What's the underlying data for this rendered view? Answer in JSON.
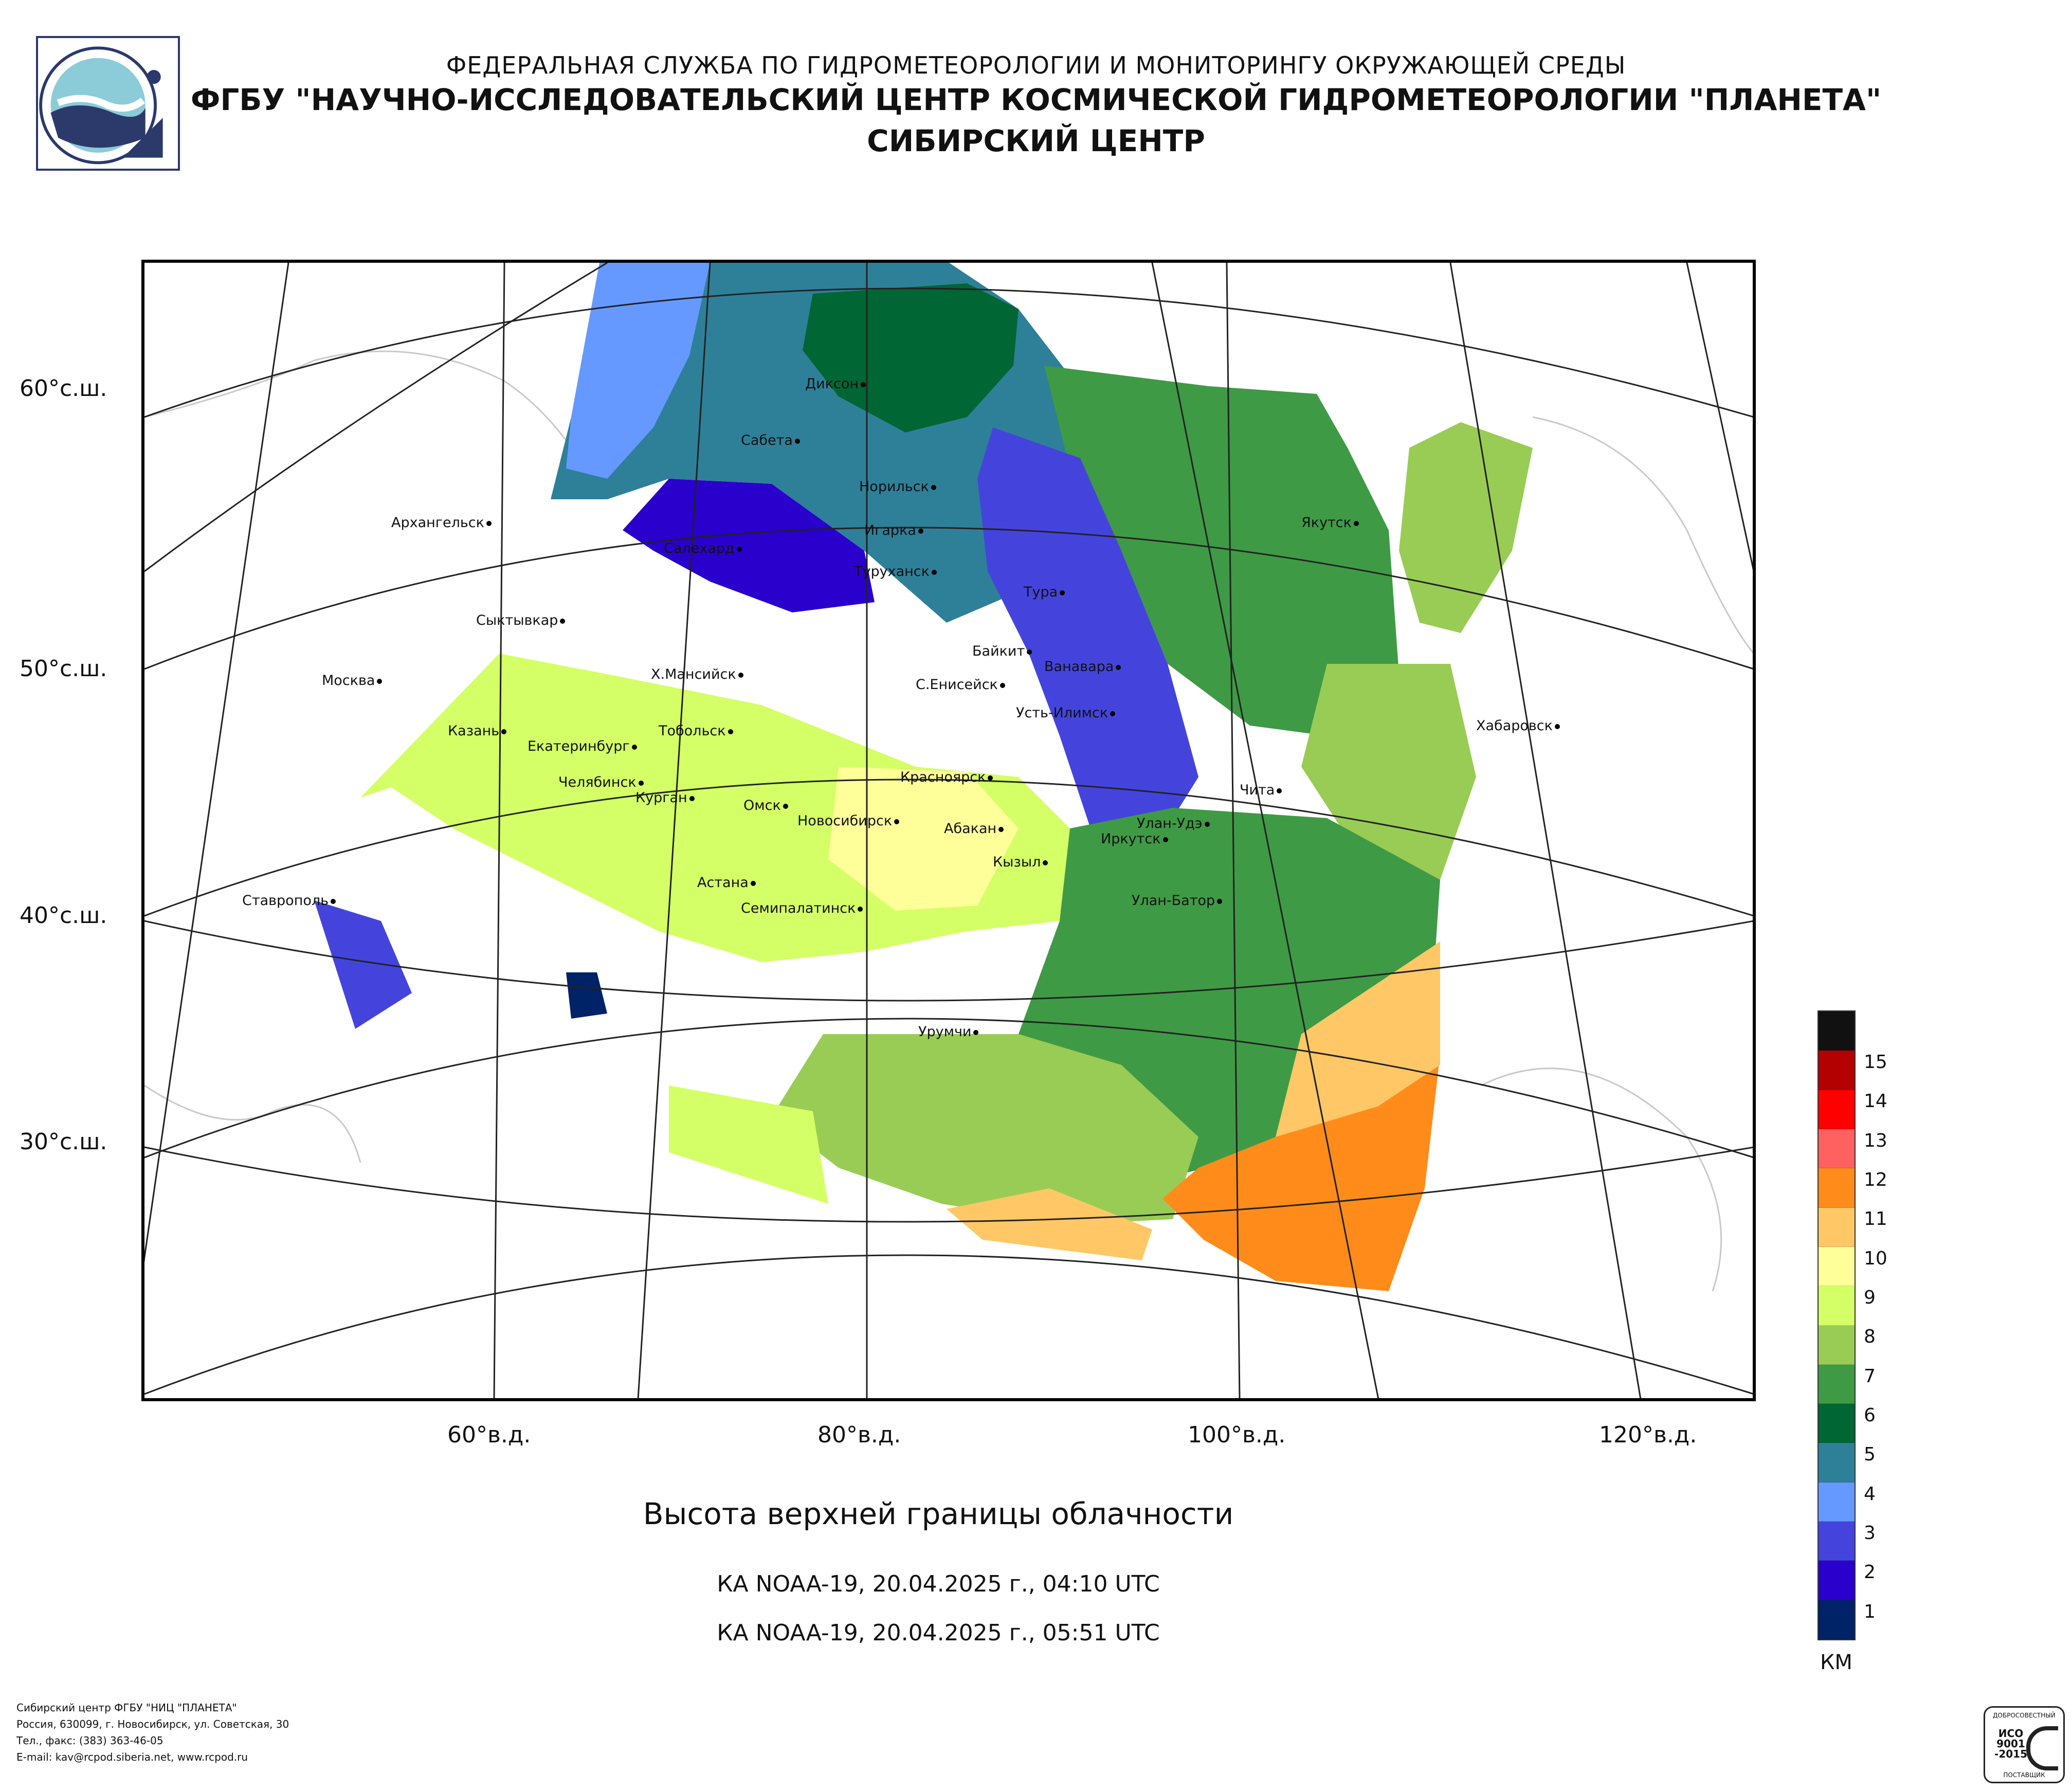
{
  "header": {
    "line1": "ФЕДЕРАЛЬНАЯ СЛУЖБА ПО ГИДРОМЕТЕОРОЛОГИИ И МОНИТОРИНГУ ОКРУЖАЮЩЕЙ СРЕДЫ",
    "line2": "ФГБУ \"НАУЧНО-ИССЛЕДОВАТЕЛЬСКИЙ ЦЕНТР КОСМИЧЕСКОЙ ГИДРОМЕТЕОРОЛОГИИ \"ПЛАНЕТА\"",
    "line3": "СИБИРСКИЙ ЦЕНТР"
  },
  "logo_icon": "planeta-satellite-logo-icon",
  "map": {
    "lat_labels": [
      "60°с.ш.",
      "50°с.ш.",
      "40°с.ш.",
      "30°с.ш."
    ],
    "lon_labels": [
      "60°в.д.",
      "80°в.д.",
      "100°в.д.",
      "120°в.д."
    ],
    "cities": [
      {
        "name": "Диксон"
      },
      {
        "name": "Сабета"
      },
      {
        "name": "Норильск"
      },
      {
        "name": "Игарка"
      },
      {
        "name": "Салехард"
      },
      {
        "name": "Туруханск"
      },
      {
        "name": "Тура"
      },
      {
        "name": "Архангельск"
      },
      {
        "name": "Якутск"
      },
      {
        "name": "Сыктывкар"
      },
      {
        "name": "Байкит"
      },
      {
        "name": "Ванавара"
      },
      {
        "name": "Москва"
      },
      {
        "name": "Х.Мансийск"
      },
      {
        "name": "С.Енисейск"
      },
      {
        "name": "Усть-Илимск"
      },
      {
        "name": "Хабаровск"
      },
      {
        "name": "Казань"
      },
      {
        "name": "Екатеринбург"
      },
      {
        "name": "Тобольск"
      },
      {
        "name": "Красноярск"
      },
      {
        "name": "Челябинск"
      },
      {
        "name": "Курган"
      },
      {
        "name": "Чита"
      },
      {
        "name": "Омск"
      },
      {
        "name": "Новосибирск"
      },
      {
        "name": "Абакан"
      },
      {
        "name": "Улан-Удэ"
      },
      {
        "name": "Иркутск"
      },
      {
        "name": "Кызыл"
      },
      {
        "name": "Астана"
      },
      {
        "name": "Ставрополь"
      },
      {
        "name": "Семипалатинск"
      },
      {
        "name": "Улан-Батор"
      },
      {
        "name": "Урумчи"
      }
    ]
  },
  "title": "Высота верхней границы облачности",
  "satellite_passes": [
    "КА NOAA-19, 20.04.2025 г., 04:10 UTC",
    "КА NOAA-19, 20.04.2025 г., 05:51 UTC"
  ],
  "legend": {
    "unit": "КМ",
    "levels": [
      {
        "label": "",
        "color": "#111111"
      },
      {
        "label": "15",
        "color": "#b30000"
      },
      {
        "label": "14",
        "color": "#ff0000"
      },
      {
        "label": "13",
        "color": "#ff6060"
      },
      {
        "label": "12",
        "color": "#ff8c1a"
      },
      {
        "label": "11",
        "color": "#ffc766"
      },
      {
        "label": "10",
        "color": "#ffff99"
      },
      {
        "label": "9",
        "color": "#d4ff66"
      },
      {
        "label": "8",
        "color": "#99cc55"
      },
      {
        "label": "7",
        "color": "#3f9a45"
      },
      {
        "label": "6",
        "color": "#006633"
      },
      {
        "label": "5",
        "color": "#2e8099"
      },
      {
        "label": "4",
        "color": "#6699ff"
      },
      {
        "label": "3",
        "color": "#4444dd"
      },
      {
        "label": "2",
        "color": "#2a00cc"
      },
      {
        "label": "1",
        "color": "#002266"
      }
    ]
  },
  "footer": {
    "line1": "Сибирский центр ФГБУ \"НИЦ \"ПЛАНЕТА\"",
    "line2": "Россия, 630099, г. Новосибирск, ул. Советская, 30",
    "line3": "Тел., факс: (383) 363-46-05",
    "line4": "E-mail: kav@rcpod.siberia.net, www.rcpod.ru"
  },
  "certificate": {
    "top": "ДОБРОСОВЕСТНЫЙ",
    "mark": "ИСО 9001 -2015",
    "bottom": "ПОСТАВЩИК"
  }
}
